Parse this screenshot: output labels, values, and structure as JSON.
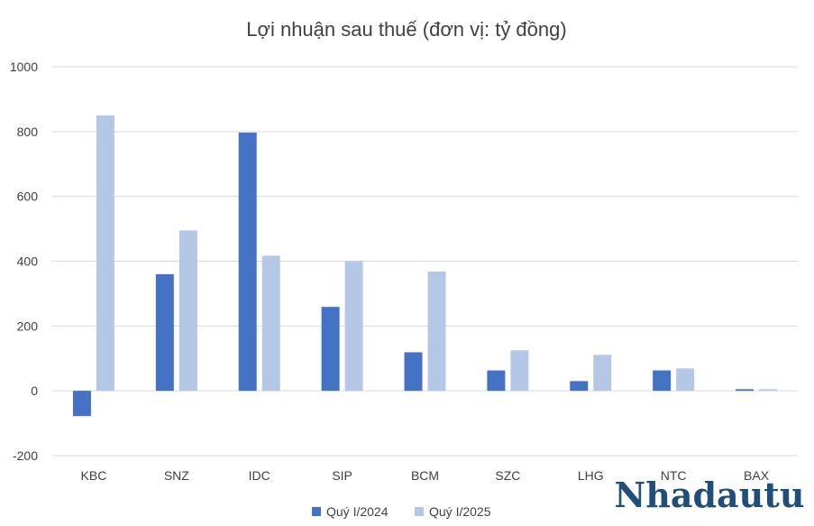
{
  "chart_data": {
    "type": "bar",
    "title": "Lợi nhuận sau thuế (đơn vị: tỷ đồng)",
    "categories": [
      "KBC",
      "SNZ",
      "IDC",
      "SIP",
      "BCM",
      "SZC",
      "LHG",
      "NTC",
      "BAX"
    ],
    "series": [
      {
        "name": "Quý I/2024",
        "color": "#4472c4",
        "values": [
          -78,
          360,
          797,
          259,
          119,
          63,
          30,
          63,
          5
        ]
      },
      {
        "name": "Quý I/2025",
        "color": "#b4c7e7",
        "values": [
          850,
          495,
          417,
          400,
          368,
          125,
          111,
          69,
          5
        ]
      }
    ],
    "ylim": [
      -200,
      1000
    ],
    "yticks": [
      -200,
      0,
      200,
      400,
      600,
      800,
      1000
    ],
    "grid": true,
    "legend_position": "bottom"
  },
  "watermark": "Nhadautu"
}
